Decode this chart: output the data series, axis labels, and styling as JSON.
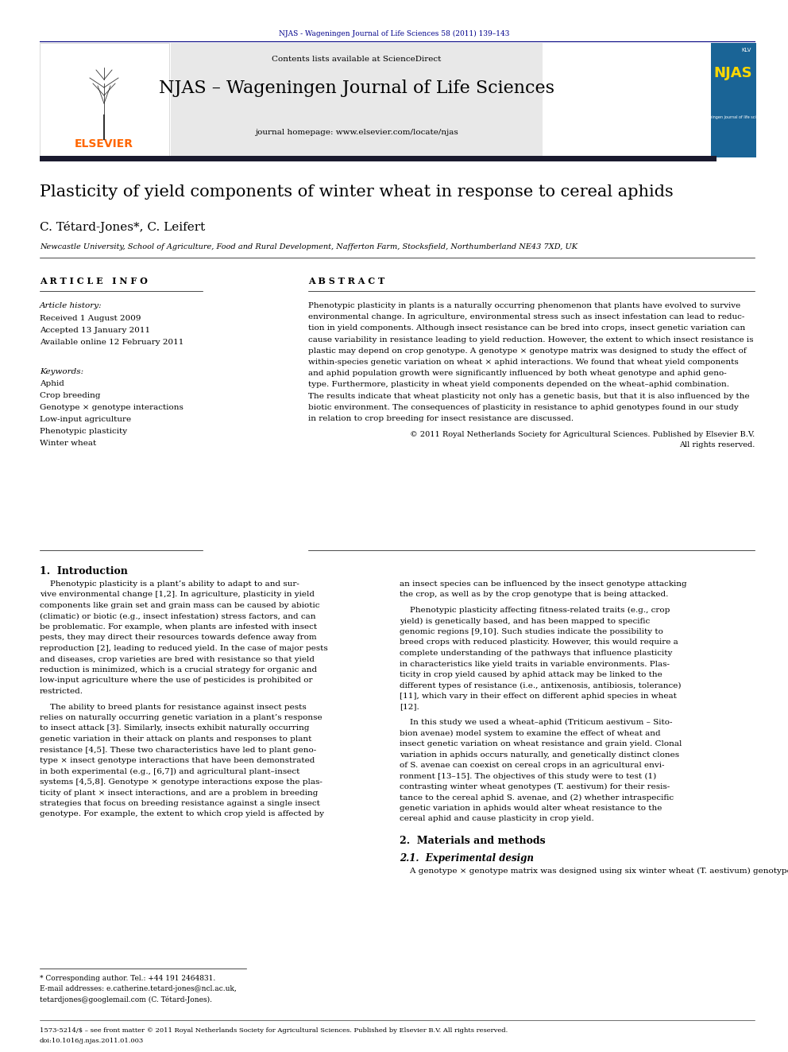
{
  "page_width": 9.92,
  "page_height": 13.23,
  "bg_color": "#ffffff",
  "header_journal_text": "NJAS - Wageningen Journal of Life Sciences 58 (2011) 139–143",
  "header_journal_color": "#00008B",
  "journal_name": "NJAS – Wageningen Journal of Life Sciences",
  "journal_homepage": "journal homepage: www.elsevier.com/locate/njas",
  "contents_text": "Contents lists available at ScienceDirect",
  "header_bg": "#e8e8e8",
  "dark_bar_color": "#1a1a2e",
  "article_title": "Plasticity of yield components of winter wheat in response to cereal aphids",
  "authors": "C. Tétard-Jones*, C. Leifert",
  "affiliation": "Newcastle University, School of Agriculture, Food and Rural Development, Nafferton Farm, Stocksfield, Northumberland NE43 7XD, UK",
  "article_info_header": "A R T I C L E   I N F O",
  "abstract_header": "A B S T R A C T",
  "article_history_label": "Article history:",
  "received": "Received 1 August 2009",
  "accepted": "Accepted 13 January 2011",
  "available": "Available online 12 February 2011",
  "keywords_label": "Keywords:",
  "keywords": [
    "Aphid",
    "Crop breeding",
    "Genotype × genotype interactions",
    "Low-input agriculture",
    "Phenotypic plasticity",
    "Winter wheat"
  ],
  "abstract_lines": [
    "Phenotypic plasticity in plants is a naturally occurring phenomenon that plants have evolved to survive",
    "environmental change. In agriculture, environmental stress such as insect infestation can lead to reduc-",
    "tion in yield components. Although insect resistance can be bred into crops, insect genetic variation can",
    "cause variability in resistance leading to yield reduction. However, the extent to which insect resistance is",
    "plastic may depend on crop genotype. A genotype × genotype matrix was designed to study the effect of",
    "within-species genetic variation on wheat × aphid interactions. We found that wheat yield components",
    "and aphid population growth were significantly influenced by both wheat genotype and aphid geno-",
    "type. Furthermore, plasticity in wheat yield components depended on the wheat–aphid combination.",
    "The results indicate that wheat plasticity not only has a genetic basis, but that it is also influenced by the",
    "biotic environment. The consequences of plasticity in resistance to aphid genotypes found in our study",
    "in relation to crop breeding for insect resistance are discussed."
  ],
  "copyright_line1": "© 2011 Royal Netherlands Society for Agricultural Sciences. Published by Elsevier B.V.",
  "copyright_line2": "All rights reserved.",
  "section1_title": "1.  Introduction",
  "intro_col1": [
    "    Phenotypic plasticity is a plant’s ability to adapt to and sur-",
    "vive environmental change [1,2]. In agriculture, plasticity in yield",
    "components like grain set and grain mass can be caused by abiotic",
    "(climatic) or biotic (e.g., insect infestation) stress factors, and can",
    "be problematic. For example, when plants are infested with insect",
    "pests, they may direct their resources towards defence away from",
    "reproduction [2], leading to reduced yield. In the case of major pests",
    "and diseases, crop varieties are bred with resistance so that yield",
    "reduction is minimized, which is a crucial strategy for organic and",
    "low-input agriculture where the use of pesticides is prohibited or",
    "restricted."
  ],
  "intro_col1b": [
    "    The ability to breed plants for resistance against insect pests",
    "relies on naturally occurring genetic variation in a plant’s response",
    "to insect attack [3]. Similarly, insects exhibit naturally occurring",
    "genetic variation in their attack on plants and responses to plant",
    "resistance [4,5]. These two characteristics have led to plant geno-",
    "type × insect genotype interactions that have been demonstrated",
    "in both experimental (e.g., [6,7]) and agricultural plant–insect",
    "systems [4,5,8]. Genotype × genotype interactions expose the plas-",
    "ticity of plant × insect interactions, and are a problem in breeding",
    "strategies that focus on breeding resistance against a single insect",
    "genotype. For example, the extent to which crop yield is affected by"
  ],
  "intro_col2a": [
    "an insect species can be influenced by the insect genotype attacking",
    "the crop, as well as by the crop genotype that is being attacked."
  ],
  "intro_col2b": [
    "    Phenotypic plasticity affecting fitness-related traits (e.g., crop",
    "yield) is genetically based, and has been mapped to specific",
    "genomic regions [9,10]. Such studies indicate the possibility to",
    "breed crops with reduced plasticity. However, this would require a",
    "complete understanding of the pathways that influence plasticity",
    "in characteristics like yield traits in variable environments. Plas-",
    "ticity in crop yield caused by aphid attack may be linked to the",
    "different types of resistance (i.e., antixenosis, antibiosis, tolerance)",
    "[11], which vary in their effect on different aphid species in wheat",
    "[12]."
  ],
  "intro_col2c": [
    "    In this study we used a wheat–aphid (Triticum aestivum – Sito-",
    "bion avenae) model system to examine the effect of wheat and",
    "insect genetic variation on wheat resistance and grain yield. Clonal",
    "variation in aphids occurs naturally, and genetically distinct clones",
    "of S. avenae can coexist on cereal crops in an agricultural envi-",
    "ronment [13–15]. The objectives of this study were to test (1)",
    "contrasting winter wheat genotypes (T. aestivum) for their resis-",
    "tance to the cereal aphid S. avenae, and (2) whether intraspecific",
    "genetic variation in aphids would alter wheat resistance to the",
    "cereal aphid and cause plasticity in crop yield."
  ],
  "section2_title": "2.  Materials and methods",
  "section2_sub": "2.1.  Experimental design",
  "section2_text": "    A genotype × genotype matrix was designed using six winter wheat (T. aestivum) genotypes and two cereal aphid (S. avenae)",
  "footnote_star": "* Corresponding author. Tel.: +44 191 2464831.",
  "footnote_email": "E-mail addresses: e.catherine.tetard-jones@ncl.ac.uk,",
  "footnote_email2": "tetardjones@googlemail.com (C. Tétard-Jones).",
  "footer_text": "1573-5214/$ – see front matter © 2011 Royal Netherlands Society for Agricultural Sciences. Published by Elsevier B.V. All rights reserved.",
  "footer_doi": "doi:10.1016/j.njas.2011.01.003"
}
